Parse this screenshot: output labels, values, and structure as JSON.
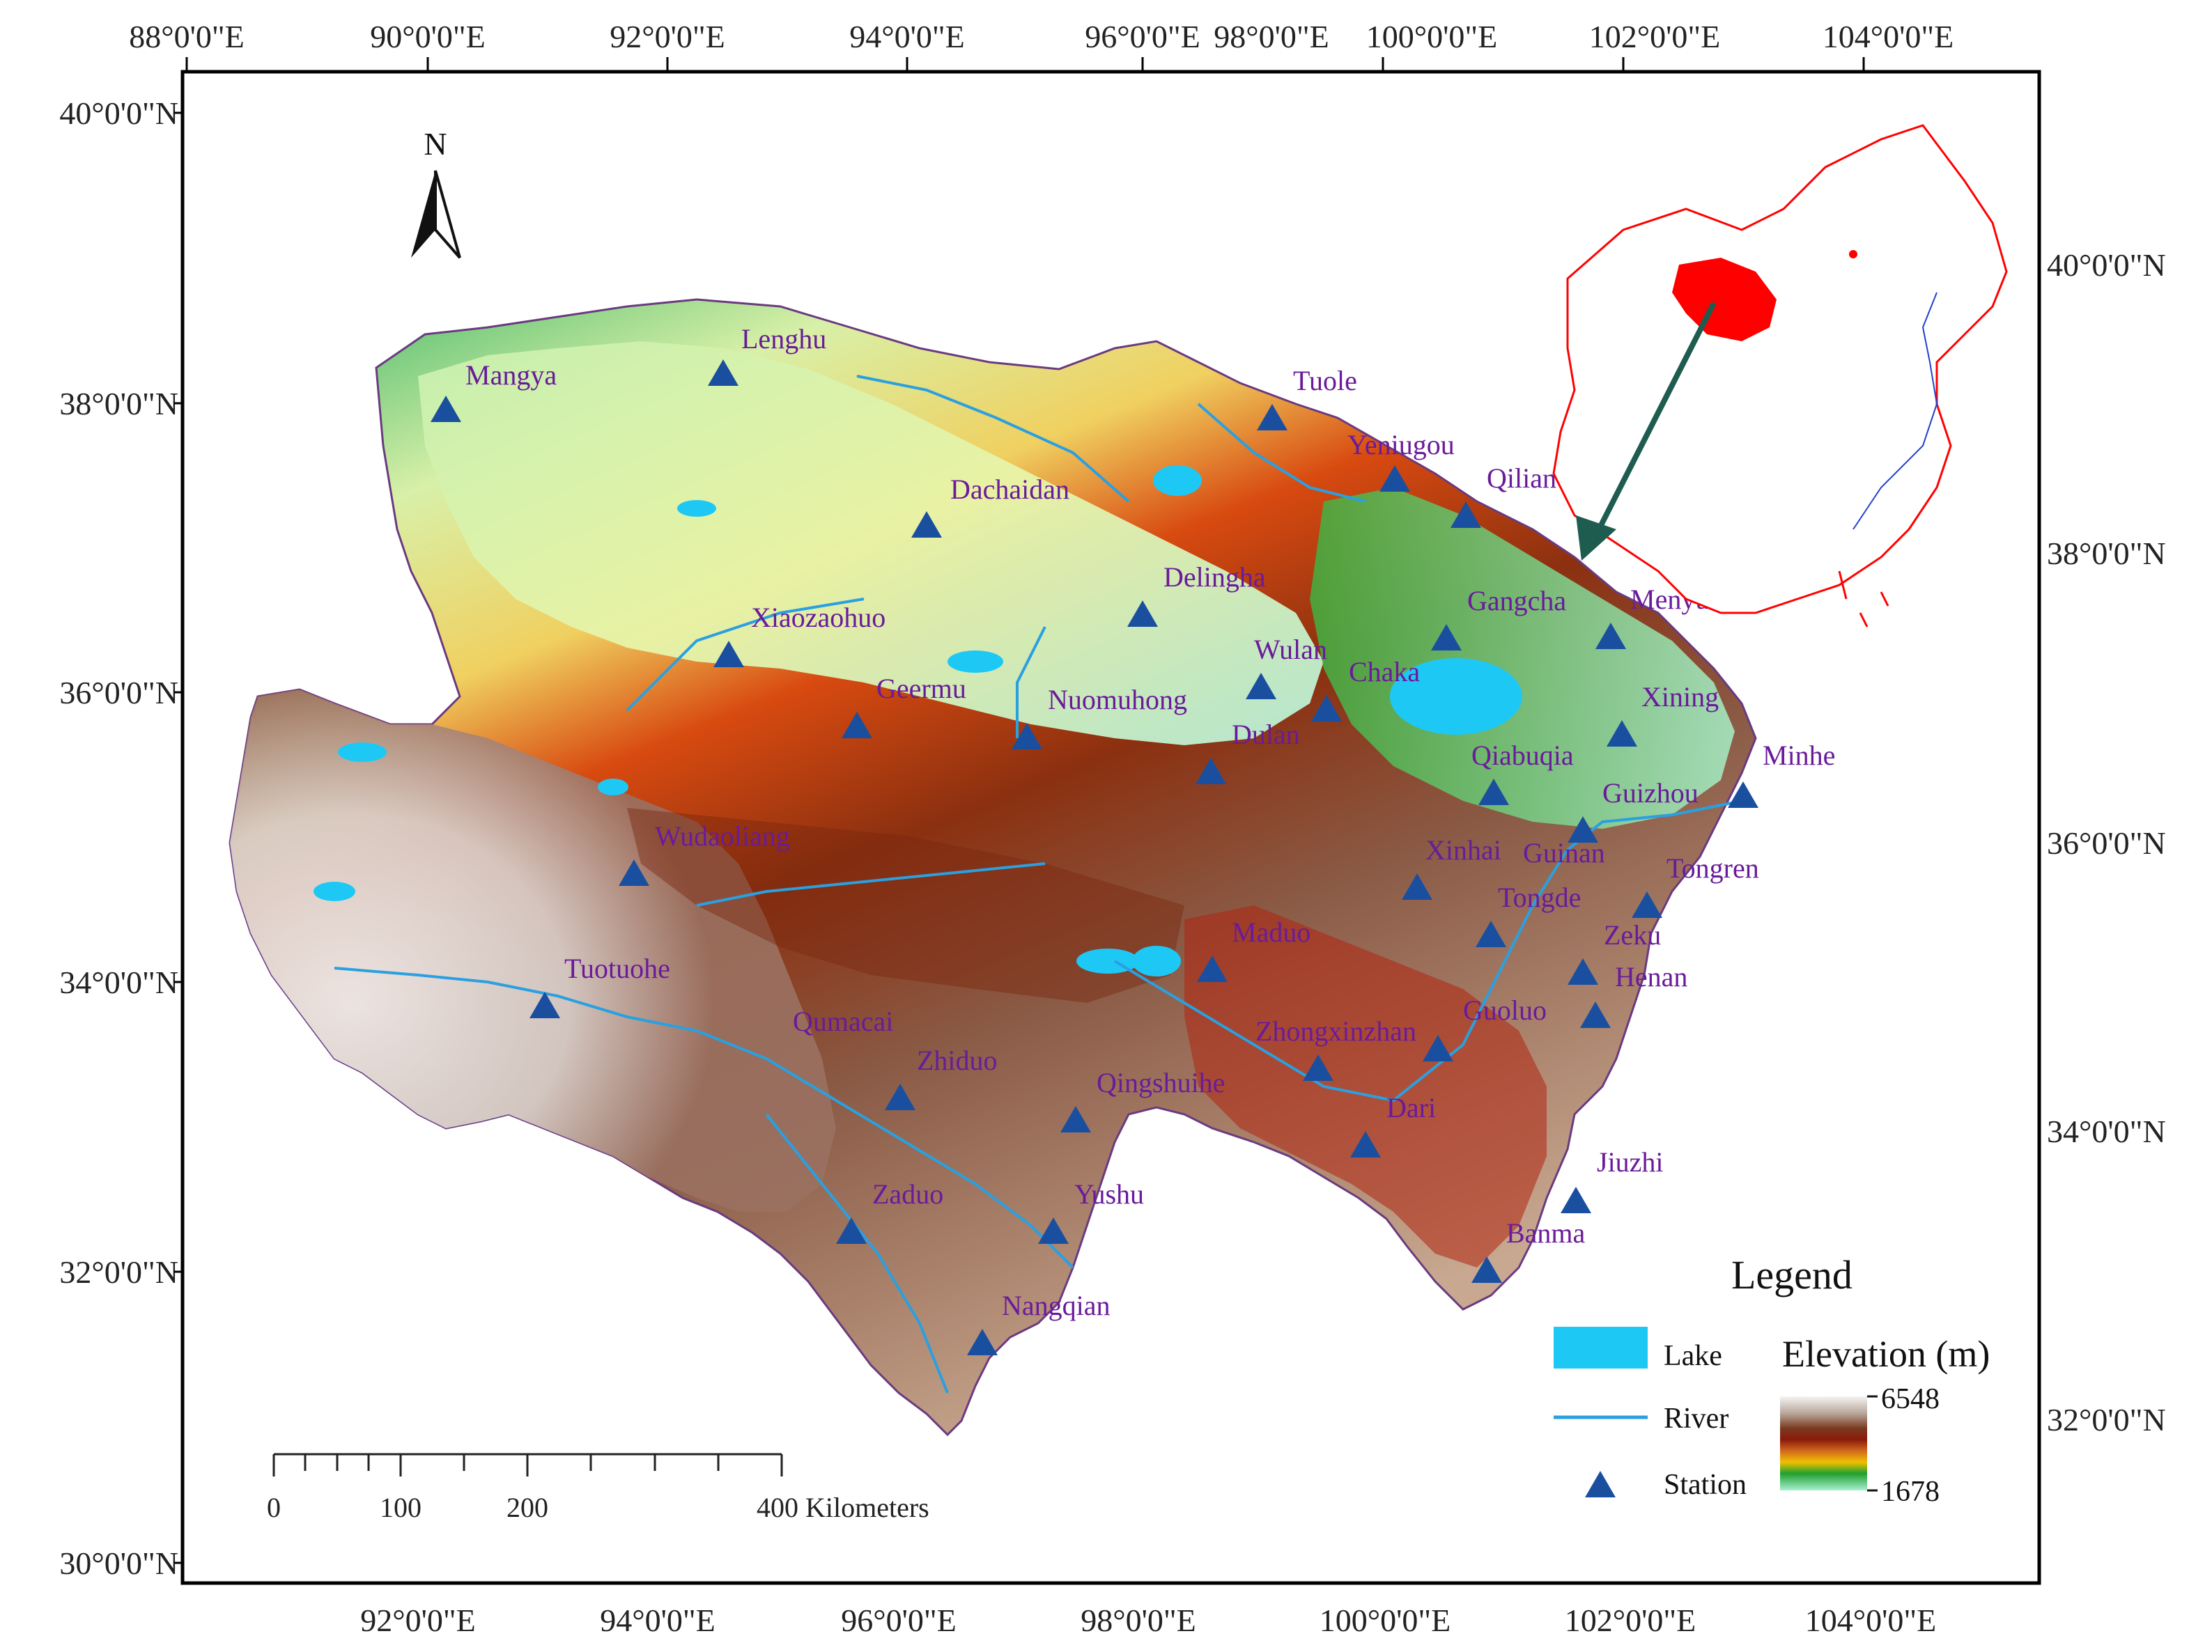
{
  "top_axis_labels": [
    "88°0'0\"E",
    "90°0'0\"E",
    "92°0'0\"E",
    "94°0'0\"E",
    "96°0'0\"E",
    "98°0'0\"E",
    "100°0'0\"E",
    "102°0'0\"E",
    "104°0'0\"E"
  ],
  "bottom_axis_labels": [
    "92°0'0\"E",
    "94°0'0\"E",
    "96°0'0\"E",
    "98°0'0\"E",
    "100°0'0\"E",
    "102°0'0\"E",
    "104°0'0\"E"
  ],
  "left_axis_labels": [
    "40°0'0\"N",
    "38°0'0\"N",
    "36°0'0\"N",
    "34°0'0\"N",
    "32°0'0\"N",
    "30°0'0\"N"
  ],
  "right_axis_labels": [
    "40°0'0\"N",
    "38°0'0\"N",
    "36°0'0\"N",
    "34°0'0\"N",
    "32°0'0\"N"
  ],
  "north_arrow": {
    "label": "N",
    "icon": "north-arrow-icon"
  },
  "stations": [
    {
      "name": "Mangya"
    },
    {
      "name": "Lenghu"
    },
    {
      "name": "Tuole"
    },
    {
      "name": "Yeniugou"
    },
    {
      "name": "Qilian"
    },
    {
      "name": "Dachaidan"
    },
    {
      "name": "Delingha"
    },
    {
      "name": "Gangcha"
    },
    {
      "name": "Menyuan"
    },
    {
      "name": "Xiaozaohuo"
    },
    {
      "name": "Wulan"
    },
    {
      "name": "Chaka"
    },
    {
      "name": "Xining"
    },
    {
      "name": "Geermu"
    },
    {
      "name": "Nuomuhong"
    },
    {
      "name": "Dulan"
    },
    {
      "name": "Qiabuqia"
    },
    {
      "name": "Minhe"
    },
    {
      "name": "Guizhou"
    },
    {
      "name": "Wudaoliang"
    },
    {
      "name": "Xinhai"
    },
    {
      "name": "Guinan"
    },
    {
      "name": "Tongren"
    },
    {
      "name": "Tongde"
    },
    {
      "name": "Zeku"
    },
    {
      "name": "Maduo"
    },
    {
      "name": "Henan"
    },
    {
      "name": "Tuotuohe"
    },
    {
      "name": "Guoluo"
    },
    {
      "name": "Qumacai"
    },
    {
      "name": "Zhongxinzhan"
    },
    {
      "name": "Zhiduo"
    },
    {
      "name": "Qingshuihe"
    },
    {
      "name": "Dari"
    },
    {
      "name": "Jiuzhi"
    },
    {
      "name": "Zaduo"
    },
    {
      "name": "Yushu"
    },
    {
      "name": "Banma"
    },
    {
      "name": "Nangqian"
    }
  ],
  "scale_bar": {
    "ticks": [
      "0",
      "100",
      "200"
    ],
    "end_label": "400 Kilometers"
  },
  "legend": {
    "title": "Legend",
    "lake_label": "Lake",
    "river_label": "River",
    "station_label": "Station",
    "elevation_title": "Elevation (m)",
    "elevation_max": "6548",
    "elevation_min": "1678"
  },
  "colors": {
    "lake": "#1ec8f5",
    "river": "#2aa0e0",
    "station": "#1a4fa0",
    "station_label": "#6a1b9a",
    "inset_highlight": "#ff0000",
    "arrow": "#1f5c50"
  },
  "inset_map": {
    "region": "China",
    "highlight": "Qinghai"
  }
}
